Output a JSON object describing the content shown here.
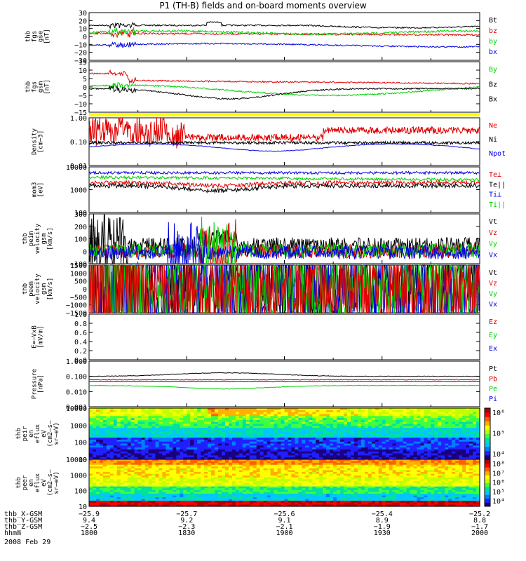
{
  "title": "P1 (TH-B) fields and on-board moments overview",
  "colors": {
    "black": "#000000",
    "red": "#e00000",
    "green": "#00d000",
    "blue": "#0000e0",
    "yellow": "#ffff00"
  },
  "panels": [
    {
      "id": "fgs-gse",
      "ylabel": [
        "thb",
        "fgs",
        "gse",
        "[nT]"
      ],
      "ticks": [
        "30",
        "20",
        "10",
        "0",
        "−10",
        "−20",
        "−30"
      ],
      "legend": [
        {
          "t": "Bt",
          "c": "black"
        },
        {
          "t": "bz",
          "c": "red"
        },
        {
          "t": "by",
          "c": "green"
        },
        {
          "t": "bx",
          "c": "blue"
        }
      ]
    },
    {
      "id": "fgs-gsm",
      "ylabel": [
        "thb",
        "fgs",
        "gsm",
        "[nT]"
      ],
      "ticks": [
        "15",
        "10",
        "5",
        "0",
        "−5",
        "−10",
        "−15"
      ],
      "legend": [
        {
          "t": "By",
          "c": "green"
        },
        {
          "t": "Bz",
          "c": "black"
        },
        {
          "t": "Bx",
          "c": "black"
        }
      ]
    },
    {
      "id": "density",
      "ylabel": [
        "Density",
        "[cm−3]"
      ],
      "ticks": [
        "1.00",
        "0.10",
        "0.01"
      ],
      "legend": [
        {
          "t": "Ne",
          "c": "red"
        },
        {
          "t": "Ni",
          "c": "black"
        },
        {
          "t": "Npot",
          "c": "blue"
        }
      ]
    },
    {
      "id": "temperature",
      "ylabel": [
        "mom3",
        "[eV]"
      ],
      "ticks": [
        "10000",
        "1000",
        "100"
      ],
      "legend": [
        {
          "t": "Te⊥",
          "c": "red"
        },
        {
          "t": "Te||",
          "c": "black"
        },
        {
          "t": "Ti⊥",
          "c": "blue"
        },
        {
          "t": "Ti||",
          "c": "green"
        }
      ]
    },
    {
      "id": "peim-velocity",
      "ylabel": [
        "thb",
        "peim",
        "velocity",
        "gsm",
        "[km/s]"
      ],
      "ticks": [
        "300",
        "200",
        "100",
        "0",
        "−100"
      ],
      "legend": [
        {
          "t": "Vt",
          "c": "black"
        },
        {
          "t": "Vz",
          "c": "red"
        },
        {
          "t": "Vy",
          "c": "green"
        },
        {
          "t": "Vx",
          "c": "blue"
        }
      ]
    },
    {
      "id": "peem-velocity",
      "ylabel": [
        "thb",
        "peem",
        "velocity",
        "gsm",
        "[km/s]"
      ],
      "ticks": [
        "1500",
        "1000",
        "500",
        "0",
        "−500",
        "−1000",
        "−1500"
      ],
      "legend": [
        {
          "t": "Vt",
          "c": "black"
        },
        {
          "t": "Vz",
          "c": "red"
        },
        {
          "t": "Vy",
          "c": "green"
        },
        {
          "t": "Vx",
          "c": "blue"
        }
      ]
    },
    {
      "id": "efield",
      "ylabel": [
        "E=−VxB",
        "[mV/m]"
      ],
      "ticks": [
        "1.0",
        "0.8",
        "0.6",
        "0.4",
        "0.2",
        "0.0"
      ],
      "legend": [
        {
          "t": "Ez",
          "c": "red"
        },
        {
          "t": "Ey",
          "c": "green"
        },
        {
          "t": "Ex",
          "c": "blue"
        }
      ]
    },
    {
      "id": "pressure",
      "ylabel": [
        "Pressure",
        "[nPa]"
      ],
      "ticks": [
        "1.000",
        "0.100",
        "0.010",
        "0.001"
      ],
      "legend": [
        {
          "t": "Pt",
          "c": "black"
        },
        {
          "t": "Pb",
          "c": "red"
        },
        {
          "t": "Pe",
          "c": "green"
        },
        {
          "t": "Pi",
          "c": "blue"
        }
      ]
    },
    {
      "id": "peir-eflux",
      "ylabel": [
        "thb",
        "peir",
        "en",
        "eflux",
        "eV",
        "(cm2–s–",
        "sr–eV)"
      ],
      "ticks": [
        "10000",
        "1000",
        "100",
        "10"
      ],
      "cbar": [
        "10⁶",
        "10⁵",
        "10⁴"
      ]
    },
    {
      "id": "peer-eflux",
      "ylabel": [
        "thb",
        "peer",
        "en",
        "eflux",
        "eV",
        "(cm2–s–",
        "sr–eV)"
      ],
      "ticks": [
        "10000",
        "1000",
        "100",
        "10"
      ],
      "cbar": [
        "10⁸",
        "10⁷",
        "10⁶",
        "10⁵",
        "10⁴"
      ]
    }
  ],
  "footer": {
    "rows": [
      {
        "label": "thb_X-GSM",
        "values": [
          "−25.9",
          "−25.7",
          "−25.6",
          "−25.4",
          "−25.2"
        ]
      },
      {
        "label": "thb_Y-GSM",
        "values": [
          "9.4",
          "9.2",
          "9.1",
          "8.9",
          "8.8"
        ]
      },
      {
        "label": "thb_Z-GSM",
        "values": [
          "−2.5",
          "−2.3",
          "−2.1",
          "−1.9",
          "−1.7"
        ]
      },
      {
        "label": "hhmm",
        "values": [
          "1800",
          "1830",
          "1900",
          "1930",
          "2000"
        ]
      }
    ],
    "date": "2008 Feb 29"
  },
  "chart_data": {
    "type": "line",
    "title": "P1 (TH-B) fields and on-board moments overview",
    "x": [
      "1800",
      "1830",
      "1900",
      "1930",
      "2000"
    ],
    "xlabel": "hhmm",
    "series": [
      {
        "name": "Bt",
        "panel": "fgs-gse",
        "values": [
          14,
          15,
          13,
          10,
          14
        ]
      },
      {
        "name": "bz",
        "panel": "fgs-gse",
        "values": [
          4,
          3,
          2,
          2,
          1
        ]
      },
      {
        "name": "by",
        "panel": "fgs-gse",
        "values": [
          5,
          6,
          6,
          4,
          3
        ]
      },
      {
        "name": "bx",
        "panel": "fgs-gse",
        "values": [
          -12,
          -10,
          -8,
          -9,
          -12
        ]
      },
      {
        "name": "Ne",
        "panel": "density",
        "values": [
          0.2,
          0.22,
          0.15,
          0.1,
          0.25
        ]
      },
      {
        "name": "Ni",
        "panel": "density",
        "values": [
          0.1,
          0.1,
          0.08,
          0.08,
          0.08
        ]
      },
      {
        "name": "Npot",
        "panel": "density",
        "values": [
          0.06,
          0.07,
          0.05,
          0.06,
          0.07
        ]
      },
      {
        "name": "Pt",
        "panel": "pressure",
        "values": [
          0.1,
          0.12,
          0.18,
          0.13,
          0.14
        ]
      },
      {
        "name": "Pb",
        "panel": "pressure",
        "values": [
          0.06,
          0.06,
          0.07,
          0.06,
          0.06
        ]
      },
      {
        "name": "Pe",
        "panel": "pressure",
        "values": [
          0.02,
          0.02,
          0.03,
          0.03,
          0.025
        ]
      },
      {
        "name": "Pi",
        "panel": "pressure",
        "values": [
          0.05,
          0.05,
          0.04,
          0.04,
          0.05
        ]
      }
    ]
  }
}
